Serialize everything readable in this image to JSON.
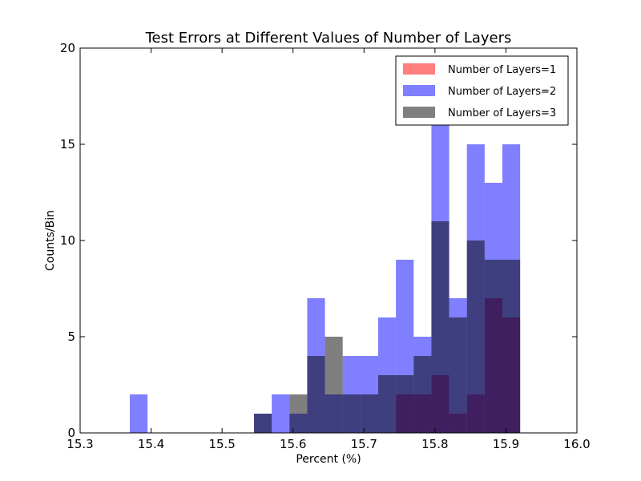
{
  "chart_data": {
    "type": "histogram",
    "title": "Test Errors at Different Values of Number of Layers",
    "xlabel": "Percent (%)",
    "ylabel": "Counts/Bin",
    "xlim": [
      15.3,
      16.0
    ],
    "ylim": [
      0,
      20
    ],
    "x_ticks": [
      "15.3",
      "15.4",
      "15.5",
      "15.6",
      "15.7",
      "15.8",
      "15.9",
      "16.0"
    ],
    "y_ticks": [
      "0",
      "5",
      "10",
      "15",
      "20"
    ],
    "legend_position": "top-right",
    "bins": [
      [
        15.37,
        15.395
      ],
      [
        15.545,
        15.57
      ],
      [
        15.57,
        15.595
      ],
      [
        15.595,
        15.62
      ],
      [
        15.62,
        15.645
      ],
      [
        15.645,
        15.67
      ],
      [
        15.67,
        15.695
      ],
      [
        15.695,
        15.72
      ],
      [
        15.72,
        15.745
      ],
      [
        15.745,
        15.77
      ],
      [
        15.77,
        15.795
      ],
      [
        15.795,
        15.82
      ],
      [
        15.82,
        15.845
      ],
      [
        15.845,
        15.87
      ],
      [
        15.87,
        15.895
      ],
      [
        15.895,
        15.92
      ],
      [
        15.92,
        15.945
      ]
    ],
    "series": [
      {
        "name": "Number of Layers=1",
        "color": "#ff0000",
        "opacity": 0.5,
        "counts": [
          0,
          0,
          0,
          0,
          0,
          0,
          0,
          0,
          0,
          2,
          2,
          3,
          1,
          2,
          7,
          6,
          0
        ]
      },
      {
        "name": "Number of Layers=2",
        "color": "#0000ff",
        "opacity": 0.5,
        "counts": [
          2,
          1,
          2,
          1,
          7,
          2,
          4,
          4,
          6,
          9,
          5,
          16,
          7,
          15,
          13,
          15,
          0
        ]
      },
      {
        "name": "Number of Layers=3",
        "color": "#000000",
        "opacity": 0.5,
        "counts": [
          0,
          1,
          0,
          2,
          4,
          5,
          2,
          2,
          3,
          3,
          4,
          11,
          6,
          10,
          9,
          9,
          0
        ]
      }
    ]
  }
}
